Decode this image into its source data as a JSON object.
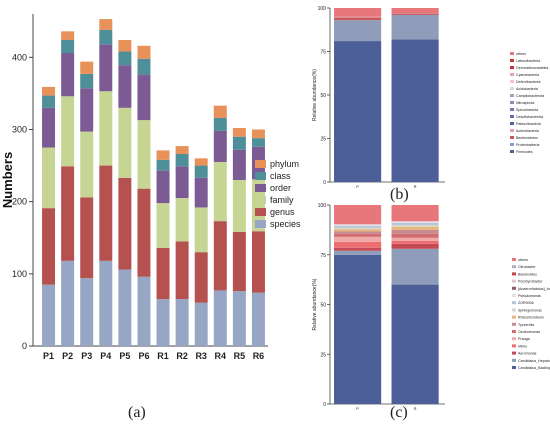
{
  "colors": {
    "phylum": "#e8925a",
    "class": "#4f8f9a",
    "order": "#7c5a93",
    "family": "#c6d494",
    "genus": "#b5514f",
    "species": "#98a6c6"
  },
  "captions": {
    "a": "(a)",
    "b": "(b)",
    "c": "(c)"
  },
  "chart_data": [
    {
      "type": "bar",
      "stacked": true,
      "ylabel": "Numbers",
      "ylim": [
        0,
        460
      ],
      "yticks": [
        0,
        100,
        200,
        300,
        400
      ],
      "categories": [
        "P1",
        "P2",
        "P3",
        "P4",
        "P5",
        "P6",
        "R1",
        "R2",
        "R3",
        "R4",
        "R5",
        "R6"
      ],
      "legend": {
        "position": "right",
        "order": [
          "phylum",
          "class",
          "order",
          "family",
          "genus",
          "species"
        ]
      },
      "series": [
        {
          "name": "species",
          "key": "species",
          "values": [
            85,
            118,
            94,
            118,
            106,
            96,
            65,
            65,
            60,
            77,
            76,
            74
          ]
        },
        {
          "name": "genus",
          "key": "genus",
          "values": [
            106,
            131,
            112,
            132,
            127,
            122,
            71,
            80,
            70,
            96,
            82,
            85
          ]
        },
        {
          "name": "family",
          "key": "family",
          "values": [
            84,
            97,
            91,
            103,
            97,
            95,
            62,
            60,
            62,
            82,
            72,
            72
          ]
        },
        {
          "name": "order",
          "key": "order",
          "values": [
            55,
            60,
            60,
            65,
            59,
            63,
            45,
            44,
            41,
            43,
            42,
            45
          ]
        },
        {
          "name": "class",
          "key": "class",
          "values": [
            17,
            18,
            20,
            20,
            19,
            22,
            15,
            17,
            17,
            18,
            18,
            12
          ]
        },
        {
          "name": "phylum",
          "key": "phylum",
          "values": [
            12,
            12,
            17,
            15,
            16,
            18,
            13,
            11,
            10,
            17,
            12,
            12
          ]
        }
      ]
    },
    {
      "type": "bar",
      "stacked": true,
      "ylabel": "Relative abundance(%)",
      "ylim": [
        0,
        100
      ],
      "yticks": [
        0,
        25,
        50,
        75,
        100
      ],
      "categories": [
        "P",
        "R"
      ],
      "legend_entries": [
        "others",
        "Latescibacteria",
        "Gemmatimonadetes",
        "Cyanobacteria",
        "Deferribacteres",
        "Acidobacteria",
        "Campilobacterota",
        "Nitrospirota",
        "Spirochaetota",
        "Desulfobacterota",
        "Patescibacteria",
        "Actinobacteria",
        "Bacteroidetes",
        "Proteobacteria",
        "Firmicutes"
      ],
      "legend_colors": [
        "#e8777c",
        "#c23a3a",
        "#c9323f",
        "#e9a0a6",
        "#f1c6c8",
        "#d8dbe6",
        "#9aa6bf",
        "#8393b6",
        "#6c80ad",
        "#5b6fa5",
        "#4f639d",
        "#e2a0a6",
        "#c35a60",
        "#8f9dbb",
        "#4c5f98"
      ],
      "series": [
        {
          "name": "Firmicutes",
          "values": [
            81,
            82
          ]
        },
        {
          "name": "Proteobacteria",
          "values": [
            12,
            14
          ]
        },
        {
          "name": "Bacteroidetes",
          "values": [
            1.5,
            0.8
          ]
        },
        {
          "name": "Actinobacteria",
          "values": [
            0.5,
            0.3
          ]
        },
        {
          "name": "others",
          "values": [
            5,
            2.9
          ]
        }
      ]
    },
    {
      "type": "bar",
      "stacked": true,
      "ylabel": "Relative abundance(%)",
      "ylim": [
        0,
        100
      ],
      "yticks": [
        0,
        25,
        50,
        75,
        100
      ],
      "categories": [
        "P",
        "R"
      ],
      "legend_entries": [
        "others",
        "Citrobacter",
        "Bacteroides",
        "Porphyrobacter",
        "[Anaerorhabdus]_furcosa_group",
        "Pseudomonas",
        "ZOR0006",
        "Sphingomonas",
        "Rhizomicrobium",
        "Tyzzerella",
        "Ozoinomonas",
        "Prauga",
        "Vibrio",
        "Aeromonas",
        "Candidatus_Hepatoplasma",
        "Candidatus_Bacilloplasma"
      ],
      "legend_colors": [
        "#e8777c",
        "#a8b3c9",
        "#c4434b",
        "#d6c9c8",
        "#8b5d6b",
        "#e5e2e8",
        "#b4c2da",
        "#dad3c9",
        "#e7b77a",
        "#c98a8f",
        "#d36c72",
        "#f0a9a9",
        "#ec6e6e",
        "#c54a55",
        "#8f9dbb",
        "#4c5f98"
      ],
      "series": [
        {
          "name": "Candidatus_Bacilloplasma",
          "values": [
            75,
            60
          ]
        },
        {
          "name": "Candidatus_Hepatoplasma",
          "values": [
            2,
            18
          ]
        },
        {
          "name": "Aeromonas",
          "values": [
            1.5,
            2.5
          ]
        },
        {
          "name": "Vibrio",
          "values": [
            3,
            1.5
          ]
        },
        {
          "name": "Prauga",
          "values": [
            2.5,
            1.5
          ]
        },
        {
          "name": "Ozoinomonas",
          "values": [
            1.5,
            2
          ]
        },
        {
          "name": "Tyzzerella",
          "values": [
            1.2,
            2
          ]
        },
        {
          "name": "Rhizomicrobium",
          "values": [
            1,
            1.5
          ]
        },
        {
          "name": "Sphingomonas",
          "values": [
            1,
            1
          ]
        },
        {
          "name": "ZOR0006",
          "values": [
            0.8,
            1
          ]
        },
        {
          "name": "Pseudomonas",
          "values": [
            0.8,
            0.8
          ]
        },
        {
          "name": "others",
          "values": [
            9.7,
            8.2
          ]
        }
      ]
    }
  ]
}
